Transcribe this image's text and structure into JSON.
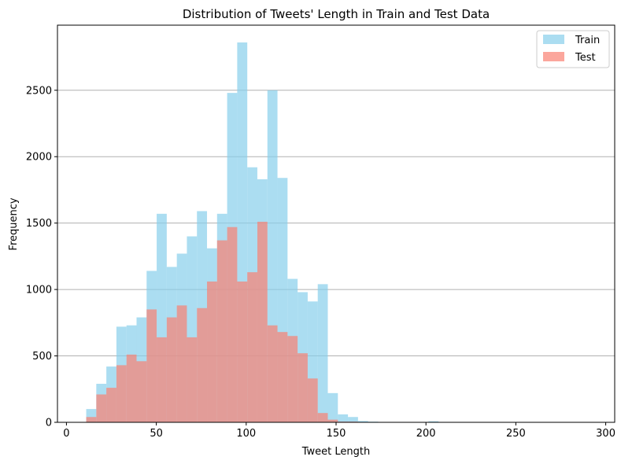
{
  "chart_data": {
    "type": "histogram",
    "title": "Distribution of Tweets' Length in Train and Test Data",
    "xlabel": "Tweet Length",
    "ylabel": "Frequency",
    "xlim": [
      -5,
      305
    ],
    "ylim": [
      0,
      2990
    ],
    "xticks": [
      0,
      50,
      100,
      150,
      200,
      250,
      300
    ],
    "yticks": [
      0,
      500,
      1000,
      1500,
      2000,
      2500
    ],
    "grid": "y-axis only",
    "legend_position": "top-right",
    "series": [
      {
        "name": "Train",
        "color": "#87ceeb",
        "opacity": 0.7,
        "bin_edges": [
          11,
          16.6,
          22.2,
          27.8,
          33.4,
          39,
          44.6,
          50.2,
          55.8,
          61.4,
          67,
          72.6,
          78.2,
          83.8,
          89.4,
          95,
          100.6,
          106.2,
          111.8,
          117.4,
          123,
          128.6,
          134.2,
          139.8,
          145.4,
          151,
          156.6,
          162.2,
          167.8,
          173.4,
          179,
          184.6,
          190.2,
          195.8,
          201.4,
          207
        ],
        "counts": [
          100,
          290,
          420,
          720,
          730,
          790,
          1140,
          1570,
          1170,
          1270,
          1400,
          1590,
          1310,
          1570,
          2480,
          2860,
          1920,
          1830,
          2500,
          1840,
          1080,
          980,
          910,
          1040,
          220,
          60,
          40,
          10,
          5,
          3,
          3,
          2,
          2,
          2,
          8
        ]
      },
      {
        "name": "Test",
        "color": "#fa8072",
        "opacity": 0.7,
        "bin_edges": [
          11,
          16.6,
          22.2,
          27.8,
          33.4,
          39,
          44.6,
          50.2,
          55.8,
          61.4,
          67,
          72.6,
          78.2,
          83.8,
          89.4,
          95,
          100.6,
          106.2,
          111.8,
          117.4,
          123,
          128.6,
          134.2,
          139.8,
          145.4,
          151,
          156.6,
          162.2
        ],
        "counts": [
          40,
          210,
          260,
          430,
          510,
          460,
          850,
          640,
          790,
          880,
          640,
          860,
          1060,
          1370,
          1470,
          1060,
          1130,
          1510,
          730,
          680,
          650,
          520,
          330,
          70,
          20,
          5,
          5
        ]
      }
    ]
  }
}
